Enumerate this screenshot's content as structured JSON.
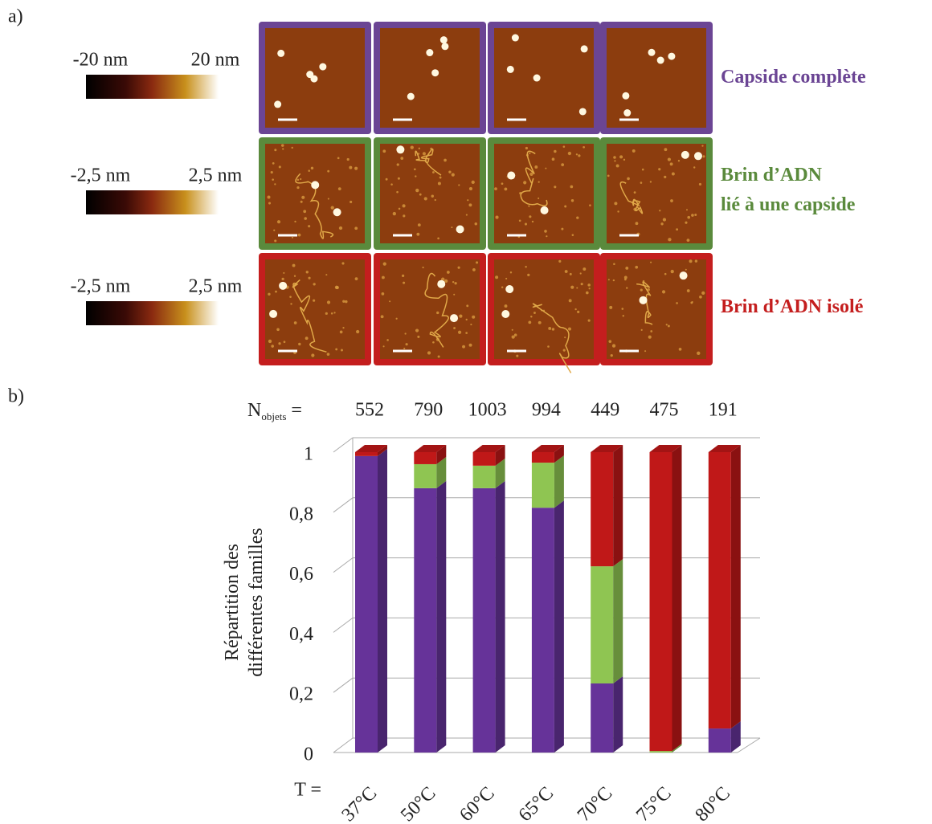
{
  "panel_labels": [
    "a)",
    "b)"
  ],
  "colorbars": [
    {
      "min": "-20 nm",
      "max": "20 nm"
    },
    {
      "min": "-2,5 nm",
      "max": "2,5 nm"
    },
    {
      "min": "-2,5 nm",
      "max": "2,5 nm"
    }
  ],
  "chart_data": {
    "type": "bar",
    "stacked": true,
    "y_label": [
      "Répartition des",
      "différentes familles"
    ],
    "x_label": "T =",
    "count_label": {
      "main": "N",
      "sub": "objets",
      "eq": "="
    },
    "counts": [
      552,
      790,
      1003,
      994,
      449,
      475,
      191
    ],
    "categories": [
      "37°C",
      "50°C",
      "60°C",
      "65°C",
      "70°C",
      "75°C",
      "80°C"
    ],
    "series": [
      {
        "name": "Capside complète",
        "color": "#663399",
        "label_color": "#6b4594",
        "values": [
          0.987,
          0.88,
          0.88,
          0.815,
          0.23,
          0,
          0.08
        ]
      },
      {
        "name": "Brin d’ADN\nlié à une capside",
        "color": "#8fc552",
        "label_color": "#5a8a3c",
        "values": [
          0,
          0.08,
          0.075,
          0.15,
          0.39,
          0.005,
          0
        ]
      },
      {
        "name": "Brin d’ADN isolé",
        "color": "#c01818",
        "label_color": "#c41e1e",
        "values": [
          0.013,
          0.04,
          0.045,
          0.035,
          0.38,
          0.995,
          0.92
        ]
      }
    ],
    "ylim": [
      0,
      1
    ],
    "yticks": [
      0,
      {
        "value": 0.2,
        "label": "0,2"
      },
      {
        "value": 0.4,
        "label": "0,4"
      },
      {
        "value": 0.6,
        "label": "0,6"
      },
      {
        "value": 0.8,
        "label": "0,8"
      },
      1
    ],
    "grid": true
  }
}
